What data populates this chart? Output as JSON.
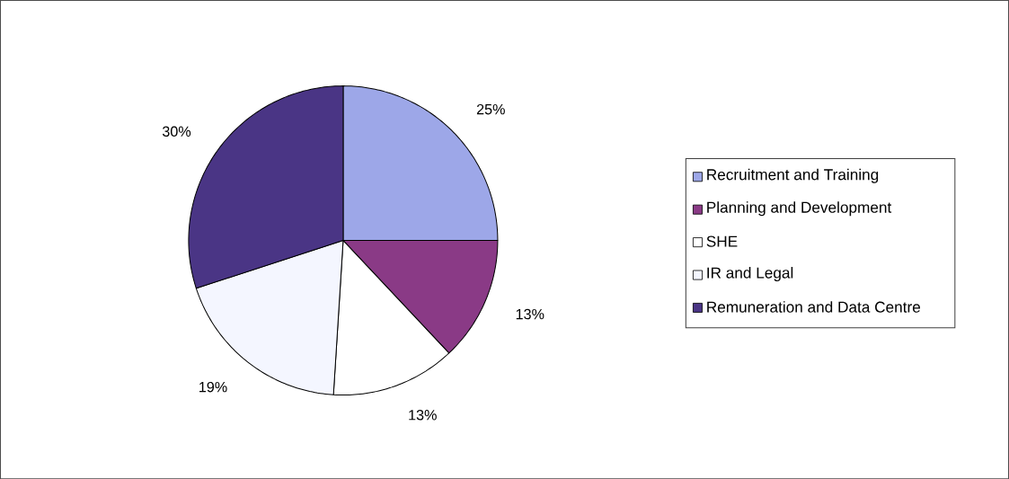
{
  "chart_data": {
    "type": "pie",
    "categories": [
      "Recruitment and Training",
      "Planning and Development",
      "SHE",
      "IR and Legal",
      "Remuneration and Data Centre"
    ],
    "values": [
      25,
      13,
      13,
      19,
      30
    ],
    "value_labels": [
      "25%",
      "13%",
      "13%",
      "19%",
      "30%"
    ],
    "colors": [
      "#9da7e8",
      "#8a3a86",
      "#ffffff",
      "#f4f6ff",
      "#4a3585"
    ],
    "legend": "right"
  }
}
